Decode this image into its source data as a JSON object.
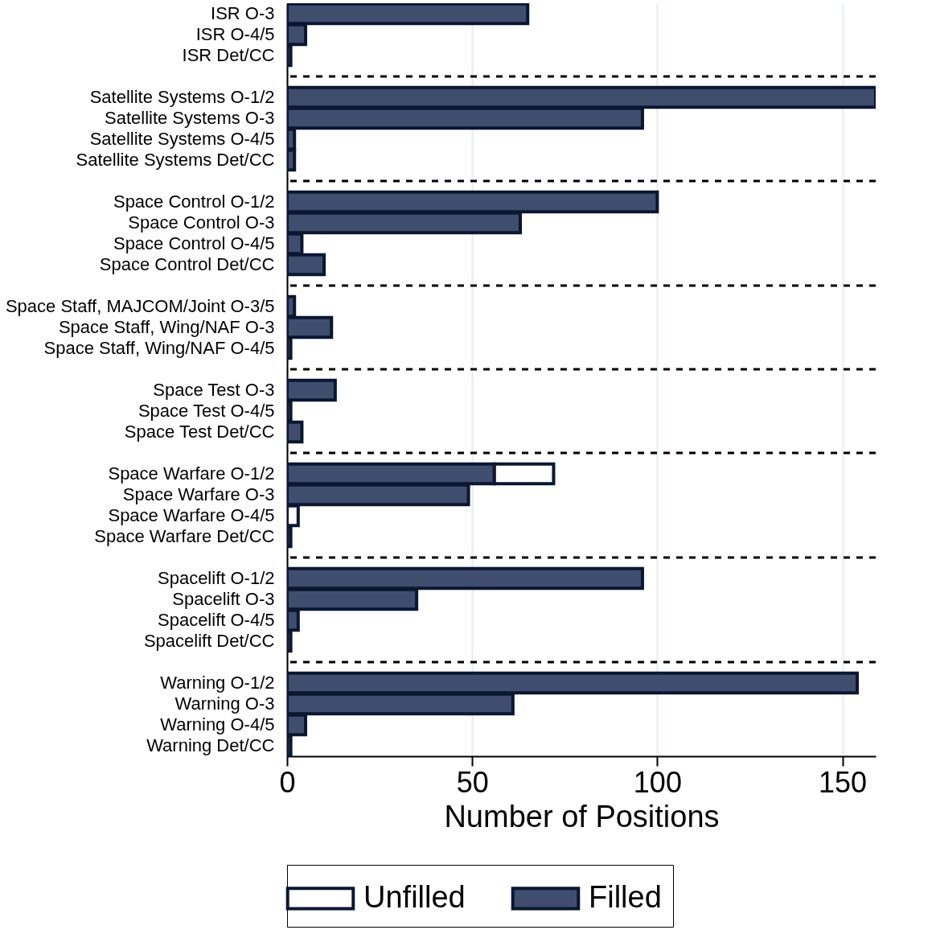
{
  "chart_data": {
    "type": "bar",
    "orientation": "horizontal",
    "stacked": true,
    "xlabel": "Number of Positions",
    "categories": [
      "ISR O-3",
      "ISR O-4/5",
      "ISR Det/CC",
      null,
      "Satellite Systems O-1/2",
      "Satellite Systems O-3",
      "Satellite Systems O-4/5",
      "Satellite Systems Det/CC",
      null,
      "Space Control O-1/2",
      "Space Control O-3",
      "Space Control O-4/5",
      "Space Control Det/CC",
      null,
      "Space Staff, MAJCOM/Joint O-3/5",
      "Space Staff, Wing/NAF O-3",
      "Space Staff, Wing/NAF O-4/5",
      null,
      "Space Test O-3",
      "Space Test O-4/5",
      "Space Test Det/CC",
      null,
      "Space Warfare O-1/2",
      "Space Warfare O-3",
      "Space Warfare O-4/5",
      "Space Warfare Det/CC",
      null,
      "Spacelift O-1/2",
      "Spacelift O-3",
      "Spacelift O-4/5",
      "Spacelift Det/CC",
      null,
      "Warning O-1/2",
      "Warning O-3",
      "Warning O-4/5",
      "Warning Det/CC"
    ],
    "series": [
      {
        "name": "Filled",
        "color": "#3f4d6e",
        "values": [
          65,
          5,
          1,
          null,
          159,
          96,
          2,
          2,
          null,
          100,
          63,
          4,
          10,
          null,
          2,
          12,
          1,
          null,
          13,
          1,
          4,
          null,
          56,
          49,
          0,
          1,
          null,
          96,
          35,
          3,
          1,
          null,
          154,
          61,
          5,
          1
        ]
      },
      {
        "name": "Unfilled",
        "color": "#ffffff",
        "values": [
          0,
          0,
          0,
          null,
          0,
          0,
          0,
          0,
          null,
          0,
          0,
          0,
          0,
          null,
          0,
          0,
          0,
          null,
          0,
          0,
          0,
          null,
          16,
          0,
          3,
          0,
          null,
          0,
          0,
          0,
          0,
          null,
          0,
          0,
          0,
          0
        ]
      }
    ],
    "xlim": [
      0,
      159
    ],
    "xticks": [
      0,
      50,
      100,
      150
    ],
    "grid": "x",
    "legend": "bottom"
  }
}
